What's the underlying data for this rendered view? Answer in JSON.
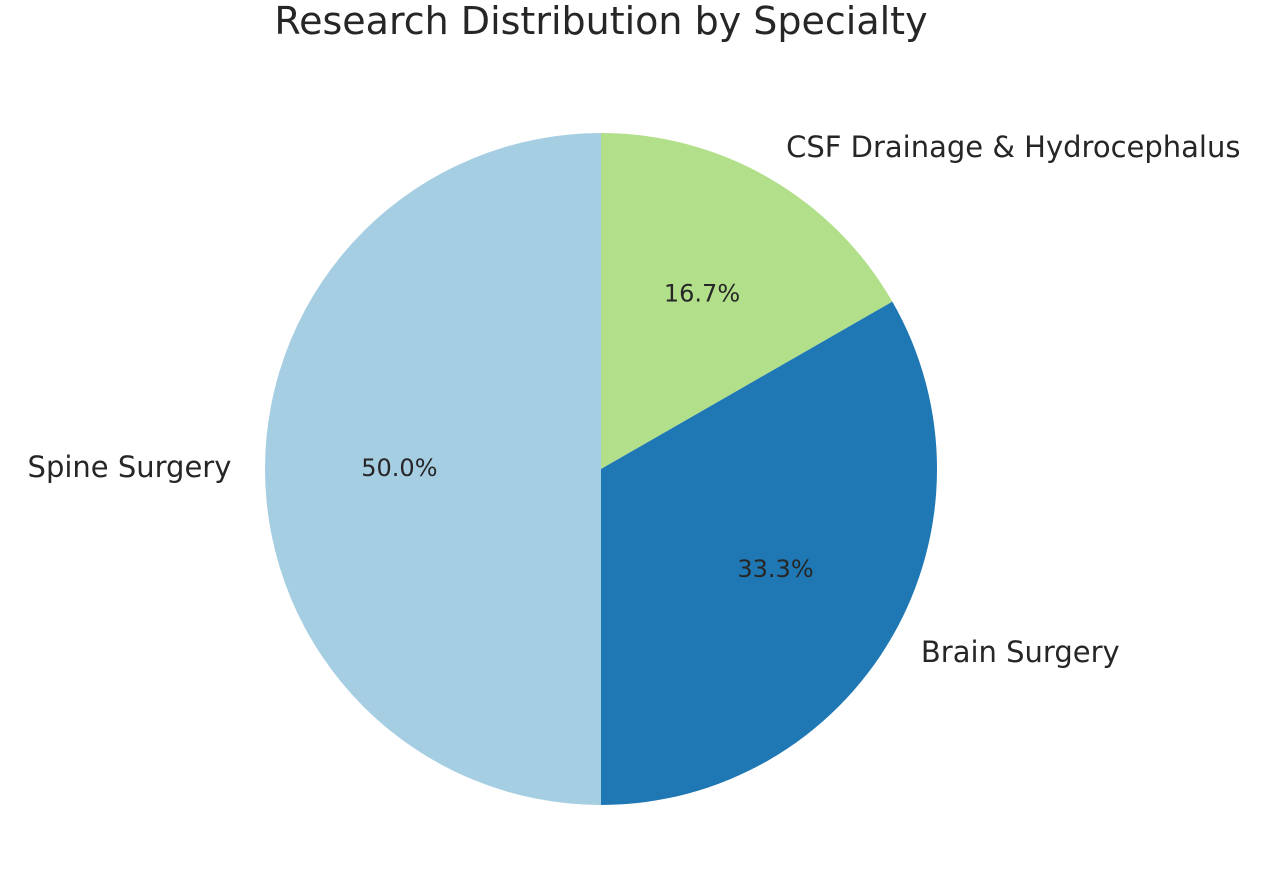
{
  "chart_data": {
    "type": "pie",
    "title": "Research Distribution by Specialty",
    "start_angle_deg": 90,
    "direction": "clockwise",
    "slices": [
      {
        "label": "CSF Drainage & Hydrocephalus",
        "value": 16.7,
        "pct_label": "16.7%",
        "color": "#b2df8a"
      },
      {
        "label": "Brain Surgery",
        "value": 33.3,
        "pct_label": "33.3%",
        "color": "#1f78b4"
      },
      {
        "label": "Spine Surgery",
        "value": 50.0,
        "pct_label": "50.0%",
        "color": "#a6cee3"
      }
    ]
  }
}
